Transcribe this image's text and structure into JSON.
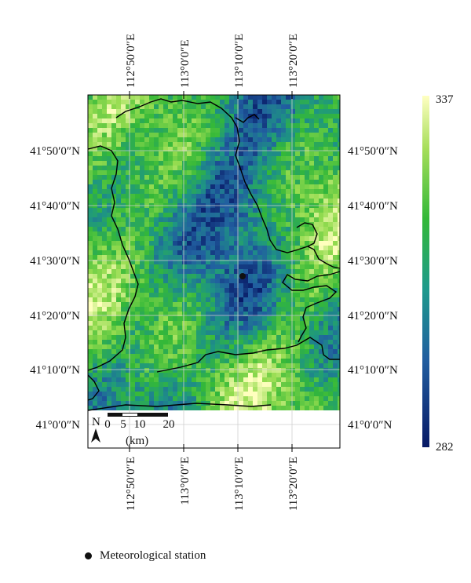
{
  "map": {
    "lon_ticks_top": [
      "112°50′0″E",
      "113°0′0″E",
      "113°10′0″E",
      "113°20′0″E"
    ],
    "lon_ticks_bottom": [
      "112°50′0″E",
      "113°0′0″E",
      "113°10′0″E",
      "113°20′0″E"
    ],
    "lat_ticks_left": [
      "41°50′0″N",
      "41°40′0″N",
      "41°30′0″N",
      "41°20′0″N",
      "41°10′0″N",
      "41°0′0″N"
    ],
    "lat_ticks_right": [
      "41°50′0″N",
      "41°40′0″N",
      "41°30′0″N",
      "41°20′0″N",
      "41°10′0″N",
      "41°0′0″N"
    ],
    "north_label": "N",
    "scale_bar": {
      "ticks": [
        "0",
        "5",
        "10",
        "20"
      ],
      "unit": "(km)"
    },
    "station": {
      "label": "Meteorological station"
    },
    "colors": {
      "low": "#0c1f6b",
      "mid": "#3db83a",
      "high": "#ffffb0"
    }
  },
  "colorbar": {
    "max": "337",
    "min": "282"
  }
}
